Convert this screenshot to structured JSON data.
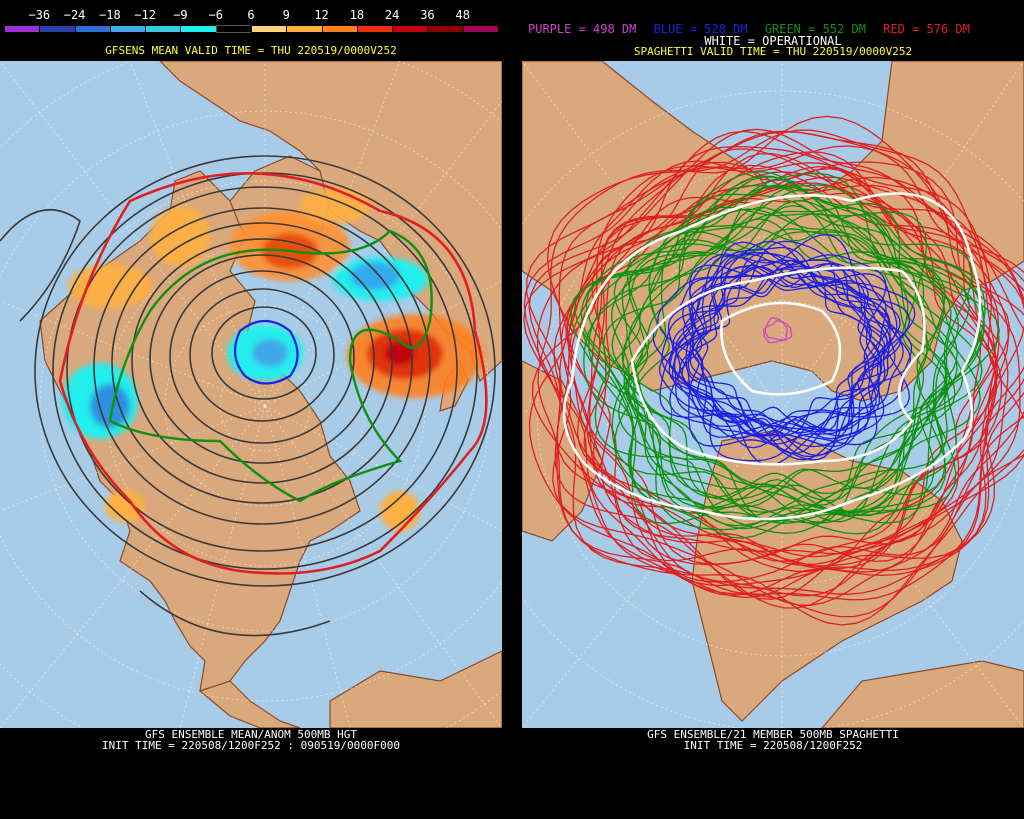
{
  "left": {
    "scale": {
      "labels": [
        "−36",
        "−24",
        "−18",
        "−12",
        "−9",
        "−6",
        "6",
        "9",
        "12",
        "18",
        "24",
        "36",
        "48"
      ],
      "colors": [
        "#9b30d8",
        "#2b3fa8",
        "#2e6fd0",
        "#3fa8e8",
        "#33cce0",
        "#22eeee",
        "#000000",
        "#ffd27a",
        "#ffb040",
        "#ff8020",
        "#e83010",
        "#c00010",
        "#8a0000",
        "#a0005a"
      ]
    },
    "valid_title": "GFSENS MEAN VALID TIME = THU 220519/0000V252",
    "footer_line1": "GFS ENSEMBLE MEAN/ANOM 500MB HGT",
    "footer_line2": "INIT TIME = 220508/1200F252 : 090519/0000F000"
  },
  "right": {
    "legend_line1": [
      {
        "text": "PURPLE = 498 DM",
        "color": "#d040d0"
      },
      {
        "text": "BLUE = 528 DM",
        "color": "#2020e0"
      },
      {
        "text": "GREEN = 552 DM",
        "color": "#109010"
      },
      {
        "text": "RED = 576 DM",
        "color": "#e02020"
      }
    ],
    "legend_line2": "WHITE = OPERATIONAL",
    "valid_title": "SPAGHETTI VALID TIME = THU 220519/0000V252",
    "footer_line1": "GFS ENSEMBLE/21 MEMBER 500MB SPAGHETTI",
    "footer_line2": "INIT TIME = 220508/1200F252"
  },
  "colors": {
    "ocean": "#a8cce8",
    "land": "#d9a87c",
    "coast": "#8a4a2a",
    "mean_contour": "#3a3a3a"
  }
}
